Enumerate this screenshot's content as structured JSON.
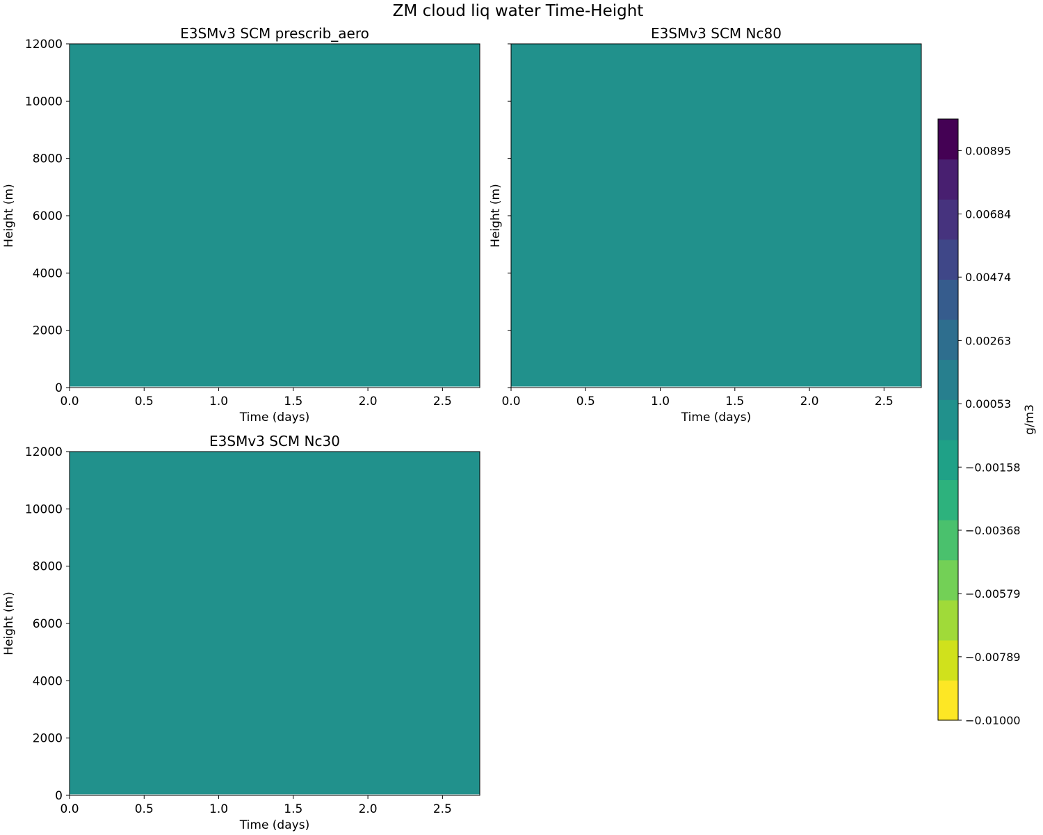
{
  "figure": {
    "suptitle": "ZM cloud liq water Time-Height"
  },
  "chart_data": [
    {
      "type": "heatmap",
      "title": "E3SMv3 SCM prescrib_aero",
      "xlabel": "Time (days)",
      "ylabel": "Height (m)",
      "xlim": [
        0,
        2.75
      ],
      "ylim": [
        0,
        12000
      ],
      "xticks": [
        "0.0",
        "0.5",
        "1.0",
        "1.5",
        "2.0",
        "2.5"
      ],
      "yticks": [
        "0",
        "2000",
        "4000",
        "6000",
        "8000",
        "10000",
        "12000"
      ],
      "show_yticklabels": true,
      "field": "uniform",
      "value": 0,
      "fill_color": "#21918c"
    },
    {
      "type": "heatmap",
      "title": "E3SMv3 SCM Nc80",
      "xlabel": "Time (days)",
      "ylabel": "Height (m)",
      "xlim": [
        0,
        2.75
      ],
      "ylim": [
        0,
        12000
      ],
      "xticks": [
        "0.0",
        "0.5",
        "1.0",
        "1.5",
        "2.0",
        "2.5"
      ],
      "yticks": [
        "0",
        "2000",
        "4000",
        "6000",
        "8000",
        "10000",
        "12000"
      ],
      "show_yticklabels": false,
      "field": "uniform",
      "value": 0,
      "fill_color": "#21918c"
    },
    {
      "type": "heatmap",
      "title": "E3SMv3 SCM Nc30",
      "xlabel": "Time (days)",
      "ylabel": "Height (m)",
      "xlim": [
        0,
        2.75
      ],
      "ylim": [
        0,
        12000
      ],
      "xticks": [
        "0.0",
        "0.5",
        "1.0",
        "1.5",
        "2.0",
        "2.5"
      ],
      "yticks": [
        "0",
        "2000",
        "4000",
        "6000",
        "8000",
        "10000",
        "12000"
      ],
      "show_yticklabels": true,
      "field": "uniform",
      "value": 0,
      "fill_color": "#21918c"
    }
  ],
  "colorbar": {
    "label": "g/m3",
    "range": [
      -0.01,
      0.01
    ],
    "colors": [
      "#fde725",
      "#d0e11c",
      "#a0da39",
      "#73d056",
      "#4ac16d",
      "#2db27d",
      "#1fa187",
      "#21918c",
      "#277f8e",
      "#2e6e8e",
      "#365c8d",
      "#3f4788",
      "#46337e",
      "#481f70",
      "#440154"
    ],
    "tick_values": [
      -0.01,
      -0.00789,
      -0.00579,
      -0.00368,
      -0.00158,
      0.00053,
      0.00263,
      0.00474,
      0.00684,
      0.00895
    ],
    "tick_labels": [
      "−0.01000",
      "−0.00789",
      "−0.00579",
      "−0.00368",
      "−0.00158",
      "0.00053",
      "0.00263",
      "0.00474",
      "0.00684",
      "0.00895"
    ]
  }
}
